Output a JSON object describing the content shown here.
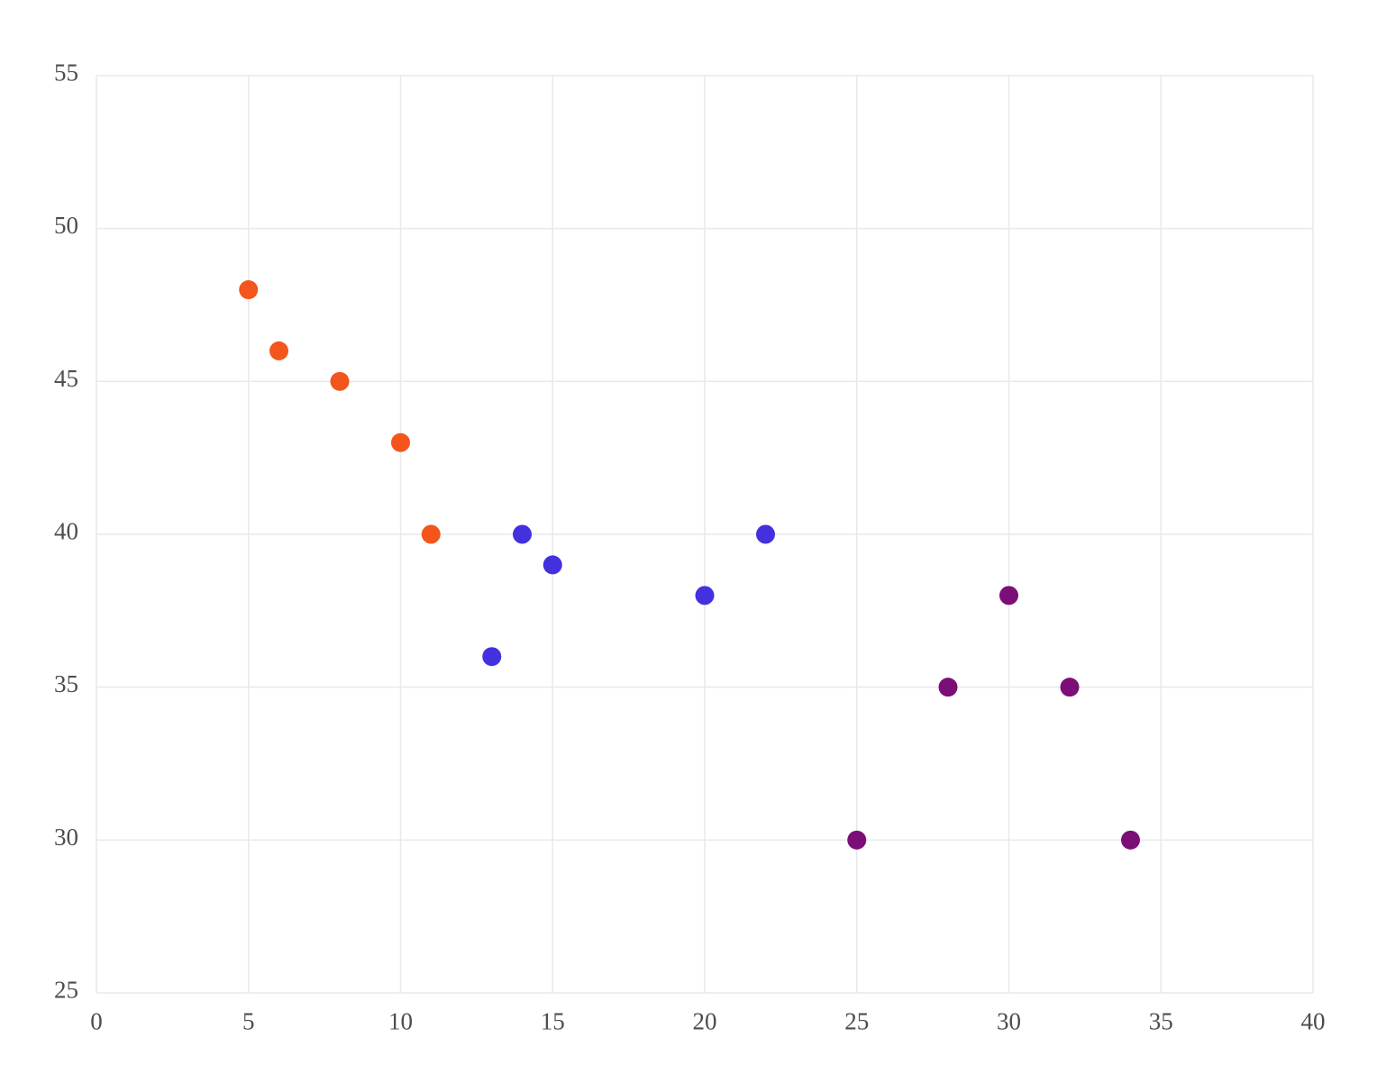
{
  "chart_data": {
    "type": "scatter",
    "title": "",
    "xlabel": "",
    "ylabel": "",
    "xlim": [
      0,
      40
    ],
    "ylim": [
      25,
      55
    ],
    "x_ticks": [
      0,
      5,
      10,
      15,
      20,
      25,
      30,
      35,
      40
    ],
    "y_ticks": [
      25,
      30,
      35,
      40,
      45,
      50,
      55
    ],
    "grid": true,
    "legend_position": "none",
    "marker_radius_px": 10.5,
    "series": [
      {
        "name": "series-orange",
        "color": "#f3551c",
        "points": [
          [
            5,
            48
          ],
          [
            6,
            46
          ],
          [
            8,
            45
          ],
          [
            10,
            43
          ],
          [
            11,
            40
          ]
        ]
      },
      {
        "name": "series-blue",
        "color": "#4331df",
        "points": [
          [
            14,
            40
          ],
          [
            15,
            39
          ],
          [
            13,
            36
          ],
          [
            20,
            38
          ],
          [
            22,
            40
          ]
        ]
      },
      {
        "name": "series-purple",
        "color": "#7b0f77",
        "points": [
          [
            30,
            38
          ],
          [
            28,
            35
          ],
          [
            32,
            35
          ],
          [
            25,
            30
          ],
          [
            34,
            30
          ]
        ]
      }
    ]
  },
  "styles": {
    "background": "#ffffff",
    "grid_color": "#e9e9e9",
    "tick_label_color": "#4d4d4d"
  }
}
